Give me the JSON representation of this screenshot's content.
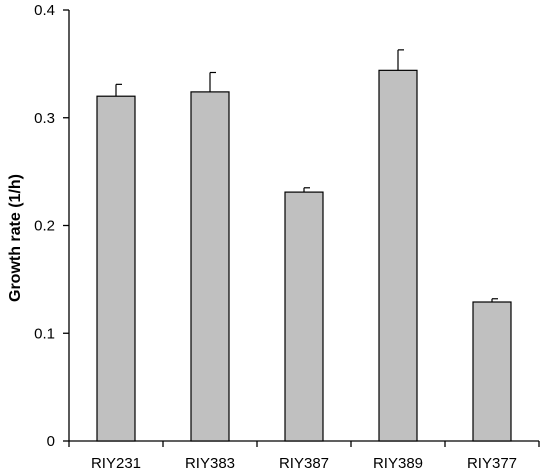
{
  "chart_data": {
    "type": "bar",
    "title": "",
    "xlabel": "",
    "ylabel": "Growth rate (1/h)",
    "categories": [
      "RIY231",
      "RIY383",
      "RIY387",
      "RIY389",
      "RIY377"
    ],
    "values": [
      0.32,
      0.324,
      0.231,
      0.344,
      0.129
    ],
    "errors": [
      0.011,
      0.018,
      0.004,
      0.019,
      0.003
    ],
    "ylim": [
      0,
      0.4
    ],
    "yticks": [
      0,
      0.1,
      0.2,
      0.3,
      0.4
    ],
    "ytick_labels": [
      "0",
      "0.1",
      "0.2",
      "0.3",
      "0.4"
    ],
    "grid": false,
    "legend": "none",
    "bar_color": "#c0c0c0",
    "edge_color": "#000000"
  }
}
